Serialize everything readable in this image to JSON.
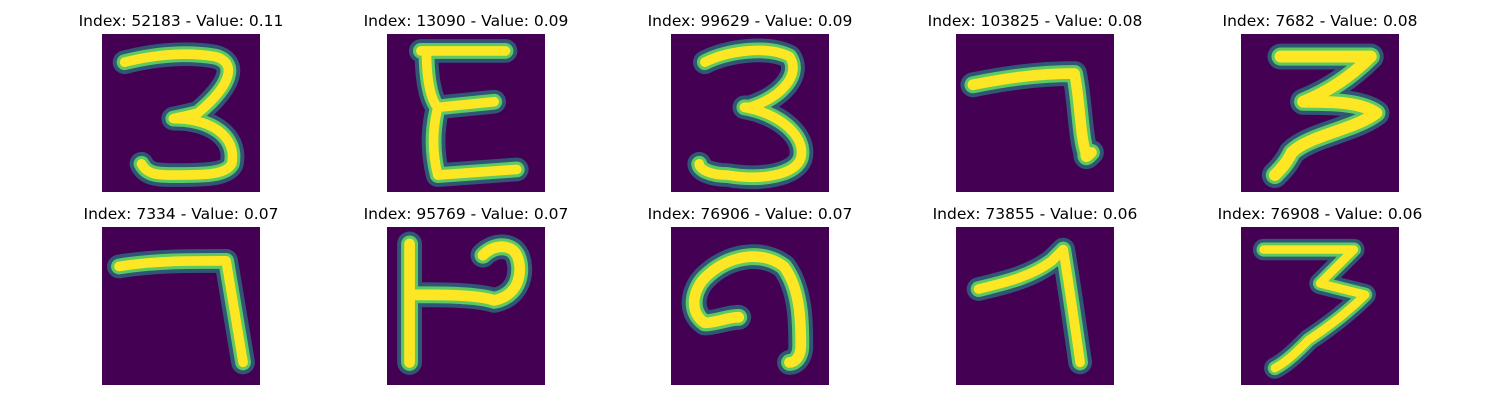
{
  "colors": {
    "background": "#440154",
    "stroke_core": "#fde725",
    "stroke_mid": "#5ec962",
    "stroke_edge": "#21918c",
    "stroke_outer": "#3b528b"
  },
  "panels": [
    {
      "title": "Index: 52183 - Value: 0.11",
      "glyph": "3"
    },
    {
      "title": "Index: 13090 - Value: 0.09",
      "glyph": "E"
    },
    {
      "title": "Index: 99629 - Value: 0.09",
      "glyph": "3"
    },
    {
      "title": "Index: 103825 - Value: 0.08",
      "glyph": "7"
    },
    {
      "title": "Index: 7682 - Value: 0.08",
      "glyph": "3"
    },
    {
      "title": "Index: 7334 - Value: 0.07",
      "glyph": "7"
    },
    {
      "title": "Index: 95769 - Value: 0.07",
      "glyph": "P"
    },
    {
      "title": "Index: 76906 - Value: 0.07",
      "glyph": "9"
    },
    {
      "title": "Index: 73855 - Value: 0.06",
      "glyph": "7"
    },
    {
      "title": "Index: 76908 - Value: 0.06",
      "glyph": "3"
    }
  ]
}
